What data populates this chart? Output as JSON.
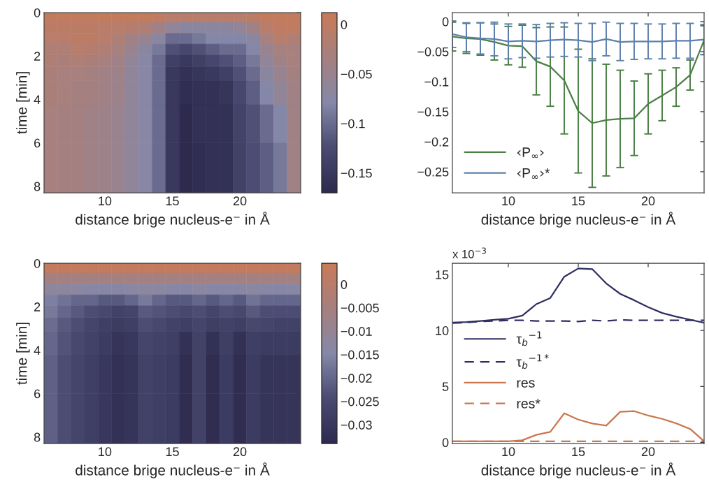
{
  "chart_data": [
    {
      "type": "heatmap",
      "xlabel": "distance brige nucleus-e⁻ in Å",
      "ylabel": "time [min]",
      "x": [
        6,
        7,
        8,
        9,
        10,
        11,
        12,
        13,
        14,
        15,
        16,
        17,
        18,
        19,
        20,
        21,
        22,
        23,
        24
      ],
      "y": [
        0.2,
        0.7,
        1.2,
        1.7,
        2.2,
        2.8,
        3.5,
        5,
        7
      ],
      "xlim": [
        5.5,
        24.5
      ],
      "xticks": [
        10,
        15,
        20
      ],
      "ylim": [
        8.3,
        0
      ],
      "yticks": [
        0,
        2,
        4,
        6,
        8
      ],
      "clim": [
        -0.17,
        0.012
      ],
      "cticks": [
        0,
        {
          "value": -0.05,
          "label": "−0.05"
        },
        {
          "value": -0.1,
          "label": "−0.1"
        },
        {
          "value": -0.15,
          "label": "−0.15"
        }
      ],
      "cells": [
        [
          0.005,
          0.005,
          0.005,
          0.005,
          0.005,
          0.005,
          0.005,
          0.005,
          0.0,
          -0.01,
          -0.01,
          -0.01,
          -0.01,
          -0.01,
          -0.01,
          -0.005,
          0.005,
          0.005,
          0.005
        ],
        [
          -0.005,
          -0.005,
          -0.005,
          -0.005,
          -0.01,
          -0.01,
          -0.015,
          -0.02,
          -0.04,
          -0.06,
          -0.07,
          -0.07,
          -0.07,
          -0.07,
          -0.06,
          -0.04,
          -0.01,
          0.0,
          0.0
        ],
        [
          -0.01,
          -0.01,
          -0.005,
          -0.005,
          -0.01,
          -0.02,
          -0.04,
          -0.05,
          -0.07,
          -0.1,
          -0.1,
          -0.09,
          -0.08,
          -0.08,
          -0.08,
          -0.07,
          -0.03,
          -0.01,
          -0.02
        ],
        [
          -0.02,
          -0.02,
          -0.01,
          -0.015,
          -0.02,
          -0.03,
          -0.05,
          -0.07,
          -0.09,
          -0.12,
          -0.13,
          -0.12,
          -0.11,
          -0.1,
          -0.1,
          -0.08,
          -0.05,
          -0.03,
          -0.03
        ],
        [
          -0.02,
          -0.025,
          -0.02,
          -0.025,
          -0.03,
          -0.04,
          -0.06,
          -0.075,
          -0.1,
          -0.14,
          -0.15,
          -0.14,
          -0.13,
          -0.12,
          -0.11,
          -0.09,
          -0.06,
          -0.04,
          -0.03
        ],
        [
          -0.025,
          -0.03,
          -0.03,
          -0.035,
          -0.04,
          -0.045,
          -0.065,
          -0.075,
          -0.1,
          -0.15,
          -0.16,
          -0.155,
          -0.15,
          -0.14,
          -0.12,
          -0.1,
          -0.07,
          -0.05,
          -0.035
        ],
        [
          -0.025,
          -0.03,
          -0.035,
          -0.035,
          -0.04,
          -0.045,
          -0.065,
          -0.075,
          -0.1,
          -0.15,
          -0.165,
          -0.16,
          -0.16,
          -0.155,
          -0.13,
          -0.11,
          -0.08,
          -0.06,
          -0.04
        ],
        [
          -0.03,
          -0.035,
          -0.035,
          -0.04,
          -0.045,
          -0.05,
          -0.065,
          -0.075,
          -0.1,
          -0.15,
          -0.17,
          -0.16,
          -0.16,
          -0.16,
          -0.135,
          -0.12,
          -0.1,
          -0.08,
          -0.04
        ],
        [
          -0.03,
          -0.035,
          -0.035,
          -0.04,
          -0.045,
          -0.05,
          -0.065,
          -0.075,
          -0.1,
          -0.15,
          -0.17,
          -0.165,
          -0.16,
          -0.16,
          -0.137,
          -0.123,
          -0.11,
          -0.09,
          -0.04
        ]
      ]
    },
    {
      "type": "line",
      "xlabel": "distance brige nucleus-e⁻ in Å",
      "x": [
        6,
        7,
        8,
        9,
        10,
        11,
        12,
        13,
        14,
        15,
        16,
        17,
        18,
        19,
        20,
        21,
        22,
        23,
        24
      ],
      "xlim": [
        6,
        24
      ],
      "xticks": [
        10,
        15,
        20
      ],
      "ylim": [
        -0.285,
        0.015
      ],
      "yticks": [
        0,
        {
          "value": -0.05,
          "label": "−0.05"
        },
        {
          "value": -0.1,
          "label": "−0.1"
        },
        {
          "value": -0.15,
          "label": "−0.15"
        },
        {
          "value": -0.2,
          "label": "−0.2"
        },
        {
          "value": -0.25,
          "label": "−0.25"
        }
      ],
      "legend": "bottom left",
      "grid": false,
      "series": [
        {
          "name": "‹P$_{∞}$›",
          "color": "#4b7f45",
          "values": [
            -0.025,
            -0.028,
            -0.029,
            -0.034,
            -0.04,
            -0.041,
            -0.066,
            -0.075,
            -0.098,
            -0.149,
            -0.169,
            -0.164,
            -0.162,
            -0.161,
            -0.137,
            -0.123,
            -0.109,
            -0.089,
            -0.031
          ],
          "errors": [
            0.024,
            0.025,
            0.027,
            0.03,
            0.032,
            0.035,
            0.056,
            0.066,
            0.089,
            0.103,
            0.107,
            0.093,
            0.081,
            0.062,
            0.05,
            0.042,
            0.032,
            0.025,
            0.024
          ]
        },
        {
          "name": "‹P$_{∞}$›*",
          "color": "#5d80ad",
          "values": [
            -0.021,
            -0.026,
            -0.028,
            -0.029,
            -0.033,
            -0.032,
            -0.033,
            -0.031,
            -0.03,
            -0.031,
            -0.034,
            -0.029,
            -0.034,
            -0.033,
            -0.033,
            -0.033,
            -0.032,
            -0.032,
            -0.03
          ],
          "errors": [
            0.022,
            0.024,
            0.026,
            0.028,
            0.029,
            0.028,
            0.028,
            0.028,
            0.028,
            0.028,
            0.031,
            0.028,
            0.031,
            0.03,
            0.029,
            0.029,
            0.029,
            0.029,
            0.025
          ]
        }
      ]
    },
    {
      "type": "heatmap",
      "xlabel": "distance brige nucleus-e⁻ in Å",
      "ylabel": "time [min]",
      "x": [
        6,
        7,
        8,
        9,
        10,
        11,
        12,
        13,
        14,
        15,
        16,
        17,
        18,
        19,
        20,
        21,
        22,
        23,
        24
      ],
      "y": [
        0.2,
        0.7,
        1.2,
        1.7,
        2.2,
        2.8,
        3.5,
        5,
        7
      ],
      "xlim": [
        5.5,
        24.5
      ],
      "xticks": [
        10,
        15,
        20
      ],
      "ylim": [
        8.3,
        0
      ],
      "yticks": [
        0,
        2,
        4,
        6,
        8
      ],
      "clim": [
        -0.034,
        0.0045
      ],
      "cticks": [
        0,
        {
          "value": -0.005,
          "label": "−0.005"
        },
        {
          "value": -0.01,
          "label": "−0.01"
        },
        {
          "value": -0.015,
          "label": "−0.015"
        },
        {
          "value": -0.02,
          "label": "−0.02"
        },
        {
          "value": -0.025,
          "label": "−0.025"
        },
        {
          "value": -0.03,
          "label": "−0.03"
        }
      ],
      "cells": [
        [
          0.003,
          0.003,
          0.003,
          0.003,
          0.003,
          0.003,
          0.003,
          0.003,
          0.003,
          0.003,
          0.003,
          0.003,
          0.003,
          0.003,
          0.003,
          0.003,
          0.003,
          0.003,
          0.003
        ],
        [
          -0.005,
          -0.005,
          -0.005,
          -0.005,
          -0.005,
          -0.005,
          -0.005,
          -0.005,
          -0.005,
          -0.005,
          -0.005,
          -0.005,
          -0.005,
          -0.005,
          -0.005,
          -0.005,
          -0.005,
          -0.005,
          -0.005
        ],
        [
          -0.012,
          -0.012,
          -0.013,
          -0.014,
          -0.014,
          -0.014,
          -0.013,
          -0.013,
          -0.013,
          -0.014,
          -0.014,
          -0.013,
          -0.014,
          -0.014,
          -0.014,
          -0.013,
          -0.014,
          -0.014,
          -0.014
        ],
        [
          -0.016,
          -0.018,
          -0.02,
          -0.02,
          -0.022,
          -0.022,
          -0.02,
          -0.017,
          -0.02,
          -0.022,
          -0.022,
          -0.02,
          -0.022,
          -0.02,
          -0.022,
          -0.018,
          -0.02,
          -0.02,
          -0.02
        ],
        [
          -0.017,
          -0.02,
          -0.022,
          -0.024,
          -0.025,
          -0.027,
          -0.026,
          -0.022,
          -0.023,
          -0.024,
          -0.025,
          -0.024,
          -0.026,
          -0.024,
          -0.025,
          -0.022,
          -0.024,
          -0.024,
          -0.024
        ],
        [
          -0.019,
          -0.022,
          -0.024,
          -0.026,
          -0.028,
          -0.029,
          -0.028,
          -0.024,
          -0.025,
          -0.027,
          -0.028,
          -0.026,
          -0.028,
          -0.027,
          -0.028,
          -0.025,
          -0.026,
          -0.027,
          -0.027
        ],
        [
          -0.02,
          -0.023,
          -0.025,
          -0.027,
          -0.029,
          -0.031,
          -0.03,
          -0.026,
          -0.027,
          -0.028,
          -0.032,
          -0.027,
          -0.032,
          -0.028,
          -0.032,
          -0.028,
          -0.029,
          -0.029,
          -0.029
        ],
        [
          -0.021,
          -0.024,
          -0.026,
          -0.028,
          -0.03,
          -0.032,
          -0.031,
          -0.027,
          -0.028,
          -0.029,
          -0.033,
          -0.027,
          -0.033,
          -0.029,
          -0.033,
          -0.029,
          -0.031,
          -0.031,
          -0.031
        ],
        [
          -0.021,
          -0.024,
          -0.026,
          -0.028,
          -0.03,
          -0.032,
          -0.031,
          -0.027,
          -0.028,
          -0.029,
          -0.033,
          -0.027,
          -0.033,
          -0.029,
          -0.033,
          -0.029,
          -0.031,
          -0.031,
          -0.031
        ]
      ]
    },
    {
      "type": "line",
      "xlabel": "distance brige nucleus-e⁻ in Å",
      "x": [
        6,
        7,
        8,
        9,
        10,
        11,
        12,
        13,
        14,
        15,
        16,
        17,
        18,
        19,
        20,
        21,
        22,
        23,
        24
      ],
      "xlim": [
        6,
        24
      ],
      "xticks": [
        10,
        15,
        20
      ],
      "ylim": [
        -0.1,
        16
      ],
      "yticks": [
        0,
        5,
        10,
        15
      ],
      "annotations": [
        "x 10$^{−3}$"
      ],
      "legend": "center left",
      "grid": false,
      "series": [
        {
          "name": "τ$_{b}$$^{−1}$",
          "color": "#2f2e62",
          "line_style": "solid",
          "values": [
            10.7,
            10.75,
            10.85,
            10.95,
            11.05,
            11.33,
            12.35,
            12.9,
            14.8,
            15.54,
            15.48,
            14.2,
            13.27,
            12.7,
            12.08,
            11.56,
            11.23,
            10.96,
            10.69
          ]
        },
        {
          "name": "τ$_{b}$$^{−1*}$",
          "color": "#2f2e62",
          "line_style": "dashed",
          "values": [
            10.65,
            10.7,
            10.8,
            10.85,
            10.9,
            10.9,
            10.85,
            10.85,
            10.85,
            10.8,
            10.9,
            10.85,
            10.95,
            10.9,
            10.9,
            10.9,
            10.9,
            10.9,
            10.9
          ]
        },
        {
          "name": "res",
          "color": "#c8774f",
          "line_style": "solid",
          "values": [
            0.1,
            0.1,
            0.1,
            0.1,
            0.1,
            0.19,
            0.67,
            0.94,
            2.6,
            2.04,
            1.69,
            1.5,
            2.73,
            2.79,
            2.4,
            2.1,
            1.7,
            1.2,
            0.1
          ]
        },
        {
          "name": "res*",
          "color": "#c8774f",
          "line_style": "dashed",
          "values": [
            0.1,
            0.1,
            0.1,
            0.1,
            0.1,
            0.1,
            0.1,
            0.1,
            0.1,
            0.1,
            0.1,
            0.1,
            0.1,
            0.1,
            0.1,
            0.1,
            0.1,
            0.1,
            0.1
          ]
        }
      ]
    }
  ]
}
